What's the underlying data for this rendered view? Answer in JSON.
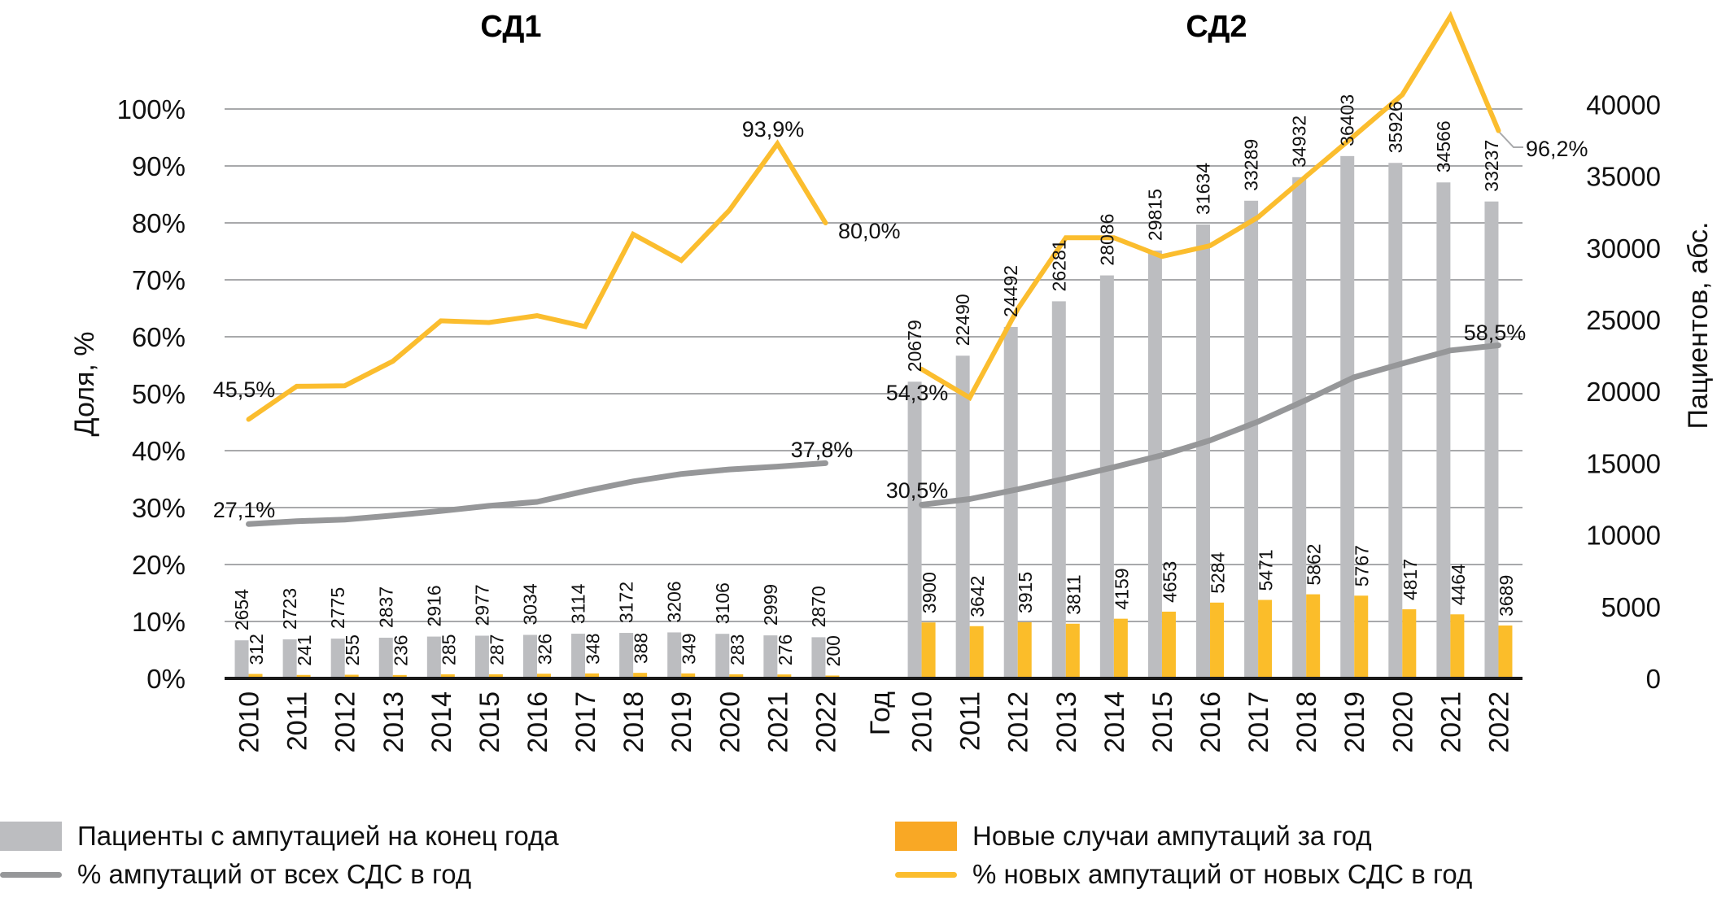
{
  "chart_data": {
    "type": "bar",
    "subtype": "combo bar + line, two panels, dual y-axis",
    "panels": [
      {
        "title": "СД1",
        "categories": [
          "2010",
          "2011",
          "2012",
          "2013",
          "2014",
          "2015",
          "2016",
          "2017",
          "2018",
          "2019",
          "2020",
          "2021",
          "2022"
        ],
        "series": [
          {
            "name": "Пациенты с ампутацией на конец года",
            "kind": "bar",
            "axis": "right",
            "values": [
              2654,
              2723,
              2775,
              2837,
              2916,
              2977,
              3034,
              3114,
              3172,
              3206,
              3106,
              2999,
              2870
            ]
          },
          {
            "name": "Новые случаи ампутаций за год",
            "kind": "bar",
            "axis": "right",
            "values": [
              312,
              241,
              255,
              236,
              285,
              287,
              326,
              348,
              388,
              349,
              283,
              276,
              200
            ]
          },
          {
            "name": "% ампутаций от всех СДС в год",
            "kind": "line",
            "axis": "left",
            "values": [
              27.1,
              27.6,
              27.9,
              28.6,
              29.4,
              30.3,
              31.0,
              32.9,
              34.6,
              35.9,
              36.7,
              37.2,
              37.8
            ],
            "labels": {
              "first": "27,1%",
              "last": "37,8%"
            }
          },
          {
            "name": "% новых амп. от новых СДС в год",
            "kind": "line",
            "axis": "left",
            "values": [
              45.5,
              51.3,
              51.4,
              55.7,
              62.8,
              62.5,
              63.7,
              61.8,
              78.0,
              73.4,
              82.2,
              93.9,
              80.0
            ],
            "labels": {
              "first": "45,5%",
              "peak": "93,9%",
              "last": "80,0%"
            }
          }
        ]
      },
      {
        "title": "СД2",
        "categories": [
          "2010",
          "2011",
          "2012",
          "2013",
          "2014",
          "2015",
          "2016",
          "2017",
          "2018",
          "2019",
          "2020",
          "2021",
          "2022"
        ],
        "series": [
          {
            "name": "Пациенты с ампутацией на конец года",
            "kind": "bar",
            "axis": "right",
            "values": [
              20679,
              22490,
              24492,
              26281,
              28086,
              29815,
              31634,
              33289,
              34932,
              36403,
              35926,
              34566,
              33237
            ]
          },
          {
            "name": "Новые случаи ампутаций за год",
            "kind": "bar",
            "axis": "right",
            "values": [
              3900,
              3642,
              3915,
              3811,
              4159,
              4653,
              5284,
              5471,
              5862,
              5767,
              4817,
              4464,
              3689
            ]
          },
          {
            "name": "% ампутаций от всех СДС в год",
            "kind": "line",
            "axis": "left",
            "values": [
              30.5,
              31.5,
              33.2,
              35.1,
              37.1,
              39.2,
              41.8,
              45.1,
              48.9,
              52.9,
              55.3,
              57.6,
              58.5
            ],
            "labels": {
              "first": "30,5%",
              "last": "58,5%"
            }
          },
          {
            "name": "% новых амп. от новых СДС в год",
            "kind": "line",
            "axis": "left",
            "values": [
              54.3,
              49.3,
              64.9,
              77.4,
              77.4,
              74.1,
              76.0,
              81.0,
              88.2,
              95.3,
              102.5,
              116.3,
              96.2
            ],
            "labels": {
              "first": "54,3%",
              "last": "96,2%"
            }
          }
        ]
      }
    ],
    "gap_label": "Год",
    "left_axis": {
      "label": "Доля, %",
      "ylim": [
        0,
        100
      ],
      "ticks": [
        "0%",
        "10%",
        "20%",
        "30%",
        "40%",
        "50%",
        "60%",
        "70%",
        "80%",
        "90%",
        "100%"
      ],
      "tick_values": [
        0,
        10,
        20,
        30,
        40,
        50,
        60,
        70,
        80,
        90,
        100
      ]
    },
    "right_axis": {
      "label": "Пациентов, абс.",
      "ylim": [
        0,
        40000
      ],
      "ticks": [
        "0",
        "5000",
        "10000",
        "15000",
        "20000",
        "25000",
        "30000",
        "35000",
        "40000"
      ],
      "tick_values": [
        0,
        5000,
        10000,
        15000,
        20000,
        25000,
        30000,
        35000,
        40000
      ]
    },
    "grid": true,
    "legend_position": "bottom",
    "legend": [
      {
        "label": "Пациенты с ампутацией на конец года",
        "kind": "box",
        "color": "#bcbdc0"
      },
      {
        "label": "Новые случаи ампутаций за год",
        "kind": "box",
        "color": "#f9a825"
      },
      {
        "label": "% ампутаций от всех СДС в год",
        "kind": "line",
        "color": "#969799"
      },
      {
        "label": "% новых ампутаций от новых СДС в год",
        "kind": "line",
        "color": "#fbbd2e"
      }
    ],
    "colors": {
      "bar_total": "#bcbdc0",
      "bar_new": "#fbbd2a",
      "line_all": "#969799",
      "line_new": "#fbbd2e"
    }
  }
}
